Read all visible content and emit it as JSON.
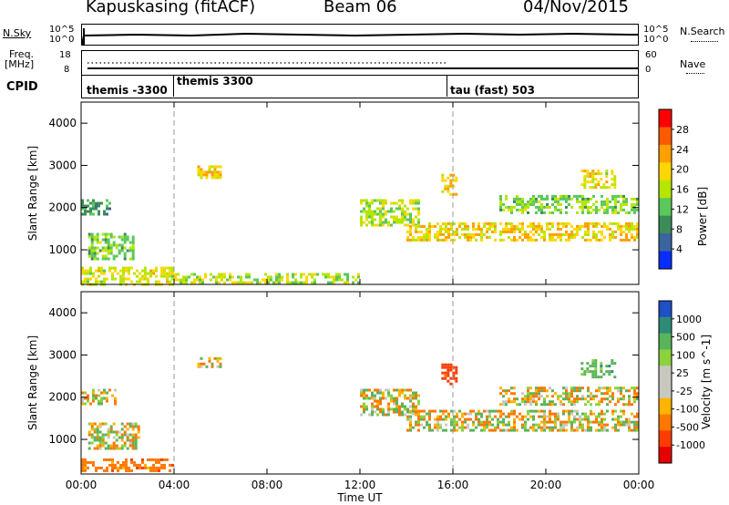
{
  "header": {
    "station": "Kapuskasing (fitACF)",
    "beam": "Beam 06",
    "date": "04/Nov/2015"
  },
  "left_labels": {
    "nsky": "N.Sky",
    "freq": "Freq.",
    "freq_unit": "[MHz]",
    "cpid": "CPID"
  },
  "right_labels": {
    "nsearch": "N.Search",
    "nave": "Nave"
  },
  "noise_panel": {
    "left_ticks": [
      "10^5",
      "10^0"
    ],
    "right_ticks": [
      "10^5",
      "10^0"
    ]
  },
  "freq_panel": {
    "left_ticks": [
      "18",
      "8"
    ],
    "right_ticks": [
      "60",
      "0"
    ]
  },
  "cpid_segments": [
    {
      "label": "themis -3300",
      "start_hour": 0,
      "end_hour": 4
    },
    {
      "label": "themis 3300",
      "start_hour": 4,
      "end_hour": 16
    },
    {
      "label": "tau (fast) 503",
      "start_hour": 16,
      "end_hour": 24
    }
  ],
  "power_colorbar": {
    "title": "Power [dB]",
    "ticks": [
      "28",
      "24",
      "20",
      "16",
      "12",
      "8",
      "4"
    ],
    "colors": [
      "#ff0000",
      "#ff5a00",
      "#ff9f00",
      "#ffd700",
      "#b4e600",
      "#5ac85a",
      "#3c8c5a",
      "#3c64a0",
      "#0a2dff"
    ]
  },
  "velocity_colorbar": {
    "title": "Velocity [m s^-1]",
    "ticks": [
      "1000",
      "500",
      "100",
      "25",
      "-25",
      "-100",
      "-500",
      "-1000"
    ],
    "colors": [
      "#1e50c8",
      "#2d8c78",
      "#5ab45a",
      "#8cd23c",
      "#c8c8be",
      "#c8c8be",
      "#ffb400",
      "#ff7800",
      "#ff3c00",
      "#e60000"
    ]
  },
  "chart_data": {
    "type": "heatmap",
    "xlabel": "Time UT",
    "ylabel": "Slant Range [km]",
    "x_ticks": [
      "00:00",
      "04:00",
      "08:00",
      "12:00",
      "16:00",
      "20:00",
      "00:00"
    ],
    "y_ticks": [
      "1000",
      "2000",
      "3000",
      "4000"
    ],
    "xlim": [
      0,
      24
    ],
    "ylim": [
      180,
      4500
    ],
    "cpid_boundaries_hours": [
      4,
      16
    ],
    "power_regions": [
      {
        "t0": 0.0,
        "t1": 1.2,
        "r0": 1850,
        "r1": 2200,
        "power": 10
      },
      {
        "t0": 0.3,
        "t1": 2.3,
        "r0": 800,
        "r1": 1400,
        "power": 14
      },
      {
        "t0": 0.0,
        "t1": 4.0,
        "r0": 200,
        "r1": 600,
        "power": 18
      },
      {
        "t0": 4.0,
        "t1": 12.0,
        "r0": 200,
        "r1": 450,
        "power": 16
      },
      {
        "t0": 5.0,
        "t1": 6.0,
        "r0": 2700,
        "r1": 3000,
        "power": 20
      },
      {
        "t0": 12.0,
        "t1": 14.5,
        "r0": 1600,
        "r1": 2200,
        "power": 16
      },
      {
        "t0": 14.0,
        "t1": 24.0,
        "r0": 1250,
        "r1": 1650,
        "power": 20
      },
      {
        "t0": 15.5,
        "t1": 16.2,
        "r0": 2300,
        "r1": 2800,
        "power": 20
      },
      {
        "t0": 18.0,
        "t1": 24.0,
        "r0": 1900,
        "r1": 2300,
        "power": 14
      },
      {
        "t0": 21.5,
        "t1": 23.0,
        "r0": 2500,
        "r1": 2900,
        "power": 18
      }
    ],
    "velocity_regions": [
      {
        "t0": 0.0,
        "t1": 1.5,
        "r0": 1850,
        "r1": 2200,
        "velocity": 0
      },
      {
        "t0": 0.3,
        "t1": 2.5,
        "r0": 800,
        "r1": 1400,
        "velocity": 0
      },
      {
        "t0": 0.0,
        "t1": 4.0,
        "r0": 250,
        "r1": 550,
        "velocity": -300
      },
      {
        "t0": 5.0,
        "t1": 6.0,
        "r0": 2700,
        "r1": 2950,
        "velocity": 0
      },
      {
        "t0": 12.0,
        "t1": 14.5,
        "r0": 1600,
        "r1": 2200,
        "velocity": 0
      },
      {
        "t0": 14.0,
        "t1": 24.0,
        "r0": 1200,
        "r1": 1700,
        "velocity": 0
      },
      {
        "t0": 15.5,
        "t1": 16.2,
        "r0": 2300,
        "r1": 2800,
        "velocity": -700
      },
      {
        "t0": 18.0,
        "t1": 24.0,
        "r0": 1850,
        "r1": 2250,
        "velocity": 0
      },
      {
        "t0": 21.5,
        "t1": 23.0,
        "r0": 2500,
        "r1": 2900,
        "velocity": 300
      }
    ]
  }
}
